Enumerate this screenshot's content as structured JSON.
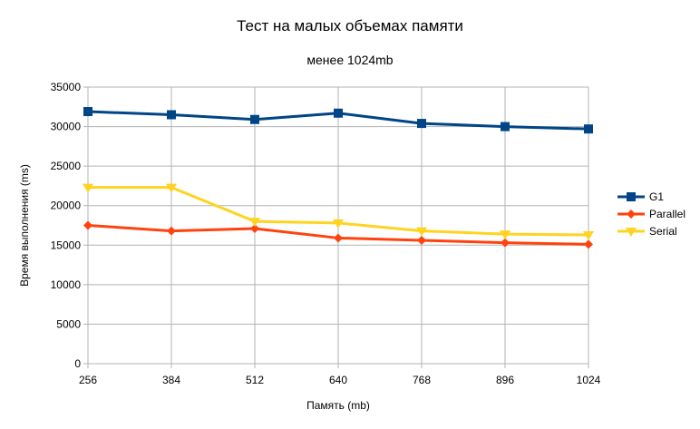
{
  "chart_data": {
    "type": "line",
    "title": "Тест на малых объемах памяти",
    "subtitle": "менее 1024mb",
    "xlabel": "Память (mb)",
    "ylabel": "Время выполнения (ms)",
    "categories": [
      "256",
      "384",
      "512",
      "640",
      "768",
      "896",
      "1024"
    ],
    "ylim": [
      0,
      35000
    ],
    "yticks": [
      0,
      5000,
      10000,
      15000,
      20000,
      25000,
      30000,
      35000
    ],
    "grid": true,
    "legend_position": "right",
    "series": [
      {
        "name": "G1",
        "color": "#004586",
        "marker": "square",
        "values": [
          31900,
          31500,
          30900,
          31700,
          30400,
          30000,
          29700
        ]
      },
      {
        "name": "Parallel",
        "color": "#ff420e",
        "marker": "diamond",
        "values": [
          17500,
          16800,
          17100,
          15900,
          15600,
          15300,
          15100
        ]
      },
      {
        "name": "Serial",
        "color": "#ffd320",
        "marker": "triangle-down",
        "values": [
          22300,
          22300,
          18000,
          17800,
          16800,
          16400,
          16300
        ]
      }
    ]
  }
}
